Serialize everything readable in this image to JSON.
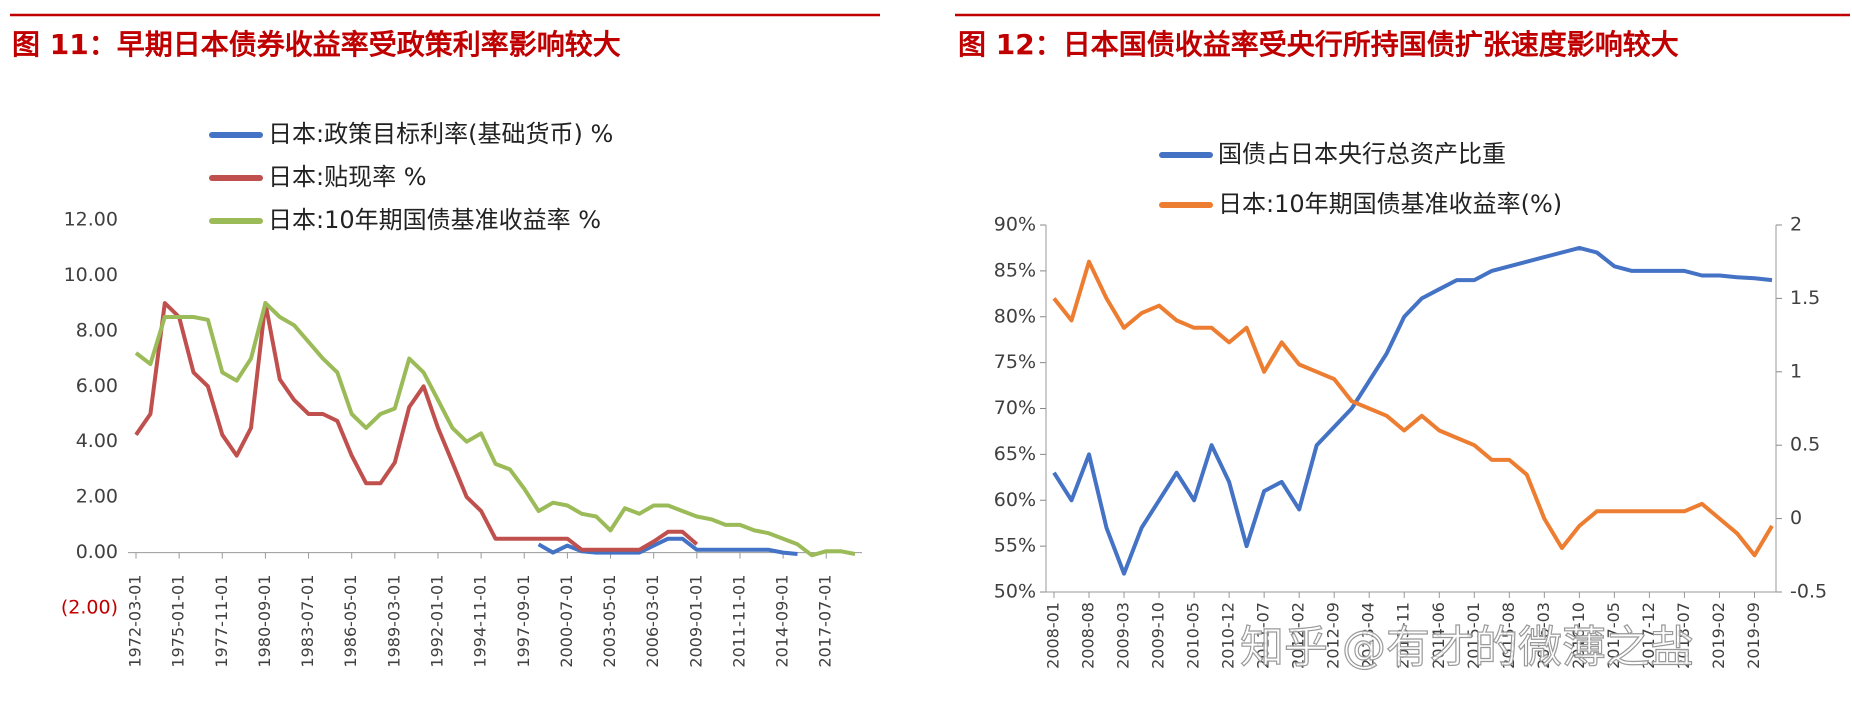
{
  "chart_data": [
    {
      "type": "line",
      "title": "图 11：早期日本债券收益率受政策利率影响较大",
      "categories": [
        "1972-03-01",
        null,
        null,
        "1975-01-01",
        null,
        null,
        "1977-11-01",
        null,
        null,
        "1980-09-01",
        null,
        null,
        "1983-07-01",
        null,
        null,
        "1986-05-01",
        null,
        null,
        "1989-03-01",
        null,
        null,
        "1992-01-01",
        null,
        null,
        "1994-11-01",
        null,
        null,
        "1997-09-01",
        null,
        null,
        "2000-07-01",
        null,
        null,
        "2003-05-01",
        null,
        null,
        "2006-03-01",
        null,
        null,
        "2009-01-01",
        null,
        null,
        "2011-11-01",
        null,
        null,
        "2014-09-01",
        null,
        null,
        "2017-07-01",
        null,
        null
      ],
      "series": [
        {
          "name": "日本:政策目标利率(基础货币) %",
          "color": "#4472c4",
          "values": [
            null,
            null,
            null,
            null,
            null,
            null,
            null,
            null,
            null,
            null,
            null,
            null,
            null,
            null,
            null,
            null,
            null,
            null,
            null,
            null,
            null,
            null,
            null,
            null,
            null,
            null,
            null,
            null,
            0.3,
            0.0,
            0.25,
            0.05,
            0,
            0,
            0,
            0,
            0.25,
            0.5,
            0.5,
            0.1,
            0.1,
            0.1,
            0.1,
            0.1,
            0.1,
            0.0,
            -0.05,
            null,
            null,
            null,
            null
          ]
        },
        {
          "name": "日本:贴现率 %",
          "color": "#c0504d",
          "values": [
            4.25,
            5.0,
            9.0,
            8.5,
            6.5,
            6.0,
            4.25,
            3.5,
            4.5,
            9.0,
            6.25,
            5.5,
            5.0,
            5.0,
            4.75,
            3.5,
            2.5,
            2.5,
            3.25,
            5.25,
            6.0,
            4.5,
            3.25,
            2.0,
            1.5,
            0.5,
            0.5,
            0.5,
            0.5,
            0.5,
            0.5,
            0.1,
            0.1,
            0.1,
            0.1,
            0.1,
            0.4,
            0.75,
            0.75,
            0.3,
            null,
            null,
            null,
            null,
            null,
            null,
            null,
            null,
            null,
            null,
            null
          ]
        },
        {
          "name": "日本:10年期国债基准收益率 %",
          "color": "#9bbb59",
          "values": [
            7.2,
            6.8,
            8.5,
            8.5,
            8.5,
            8.4,
            6.5,
            6.2,
            7.0,
            9.0,
            8.5,
            8.2,
            7.6,
            7.0,
            6.5,
            5.0,
            4.5,
            5.0,
            5.2,
            7.0,
            6.5,
            5.5,
            4.5,
            4.0,
            4.3,
            3.2,
            3.0,
            2.3,
            1.5,
            1.8,
            1.7,
            1.4,
            1.3,
            0.8,
            1.6,
            1.4,
            1.7,
            1.7,
            1.5,
            1.3,
            1.2,
            1.0,
            1.0,
            0.8,
            0.7,
            0.5,
            0.3,
            -0.1,
            0.05,
            0.05,
            -0.05
          ]
        }
      ],
      "ylim": [
        -2,
        12
      ],
      "yticks": [
        {
          "value": -2,
          "label": "(2.00)"
        },
        {
          "value": 0,
          "label": "0.00"
        },
        {
          "value": 2,
          "label": "2.00"
        },
        {
          "value": 4,
          "label": "4.00"
        },
        {
          "value": 6,
          "label": "6.00"
        },
        {
          "value": 8,
          "label": "8.00"
        },
        {
          "value": 10,
          "label": "10.00"
        },
        {
          "value": 12,
          "label": "12.00"
        }
      ],
      "grid": false
    },
    {
      "type": "line",
      "title": "图 12：日本国债收益率受央行所持国债扩张速度影响较大",
      "categories": [
        "2008-01",
        null,
        "2008-08",
        null,
        "2009-03",
        null,
        "2009-10",
        null,
        "2010-05",
        null,
        "2010-12",
        null,
        "2011-07",
        null,
        "2012-02",
        null,
        "2012-09",
        null,
        "2013-04",
        null,
        "2013-11",
        null,
        "2014-06",
        null,
        "2015-01",
        null,
        "2015-08",
        null,
        "2016-03",
        null,
        "2016-10",
        null,
        "2017-05",
        null,
        "2017-12",
        null,
        "2018-07",
        null,
        "2019-02",
        null,
        "2019-09",
        null
      ],
      "series": [
        {
          "name": "国债占日本央行总资产比重",
          "color": "#4472c4",
          "values": [
            63,
            60,
            65,
            57,
            52,
            57,
            60,
            63,
            60,
            66,
            62,
            55,
            61,
            62,
            59,
            66,
            68,
            70,
            73,
            76,
            80,
            82,
            83,
            84,
            84,
            85,
            85.5,
            86,
            86.5,
            87,
            87.5,
            87,
            85.5,
            85,
            85,
            85,
            85,
            84.5,
            84.5,
            84.3,
            84.2,
            84
          ]
        },
        {
          "name": "日本:10年期国债基准收益率(%)",
          "color": "#ed7d31",
          "axis": "y2",
          "values": [
            1.5,
            1.35,
            1.75,
            1.5,
            1.3,
            1.4,
            1.45,
            1.35,
            1.3,
            1.3,
            1.2,
            1.3,
            1.0,
            1.2,
            1.05,
            1.0,
            0.95,
            0.8,
            0.75,
            0.7,
            0.6,
            0.7,
            0.6,
            0.55,
            0.5,
            0.4,
            0.4,
            0.3,
            0.0,
            -0.2,
            -0.05,
            0.05,
            0.05,
            0.05,
            0.05,
            0.05,
            0.05,
            0.1,
            0.0,
            -0.1,
            -0.25,
            -0.05
          ]
        }
      ],
      "ylim": [
        50,
        90
      ],
      "yticks": [
        {
          "value": 50,
          "label": "50%"
        },
        {
          "value": 55,
          "label": "55%"
        },
        {
          "value": 60,
          "label": "60%"
        },
        {
          "value": 65,
          "label": "65%"
        },
        {
          "value": 70,
          "label": "70%"
        },
        {
          "value": 75,
          "label": "75%"
        },
        {
          "value": 80,
          "label": "80%"
        },
        {
          "value": 85,
          "label": "85%"
        },
        {
          "value": 90,
          "label": "90%"
        }
      ],
      "y2lim": [
        -0.5,
        2
      ],
      "y2ticks": [
        -0.5,
        0,
        0.5,
        1,
        1.5,
        2
      ],
      "grid": false
    }
  ],
  "watermark": "知乎 @有才的微薄之盐"
}
